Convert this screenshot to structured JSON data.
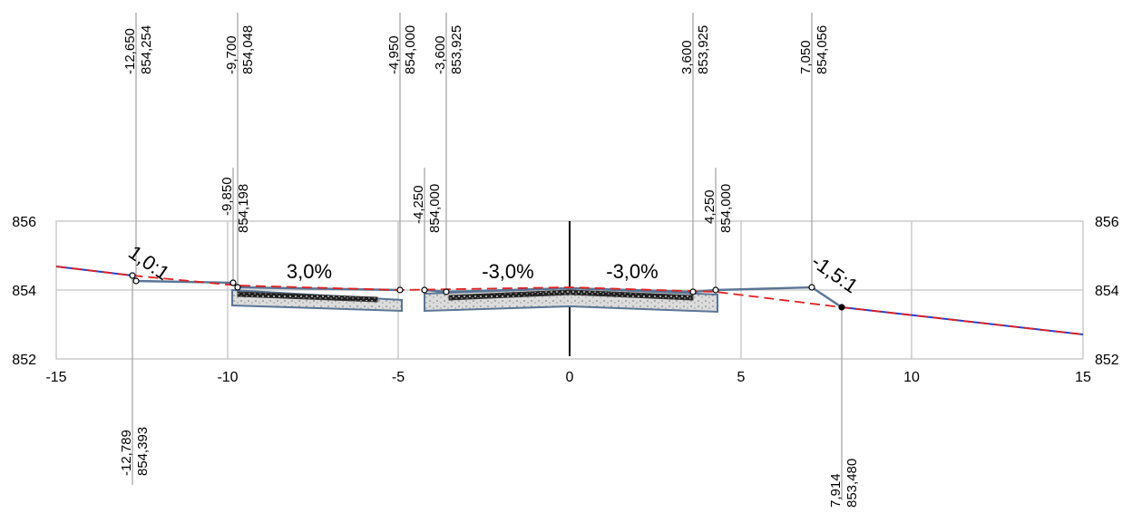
{
  "x_ticks": [
    "-15",
    "-10",
    "-5",
    "0",
    "5",
    "10",
    "15"
  ],
  "y_ticks_left": [
    "856",
    "854",
    "852"
  ],
  "y_ticks_right": [
    "856",
    "854",
    "852"
  ],
  "grade_labels": [
    "3,0%",
    "-3,0%",
    "-3,0%"
  ],
  "slope_labels": [
    "1,0:1",
    "-1,5:1"
  ],
  "top_labels": [
    {
      "offset": "-12,650",
      "elev": "854,254"
    },
    {
      "offset": "-9,700",
      "elev": "854,048"
    },
    {
      "offset": "-4,950",
      "elev": "854,000"
    },
    {
      "offset": "-3,600",
      "elev": "853,925"
    },
    {
      "offset": "3,600",
      "elev": "853,925"
    },
    {
      "offset": "7,050",
      "elev": "854,056"
    }
  ],
  "mid_labels": [
    {
      "offset": "-9,850",
      "elev": "854,198"
    },
    {
      "offset": "-4,250",
      "elev": "854,000"
    },
    {
      "offset": "4,250",
      "elev": "854,000"
    }
  ],
  "bottom_labels": [
    {
      "offset": "-12,789",
      "elev": "854,393"
    },
    {
      "offset": "7,914",
      "elev": "853,480"
    }
  ],
  "colors": {
    "grid": "#c4c4c4",
    "surface": "#5a7596",
    "existing_ground": "#e02020",
    "ground_line": "#1f3fd0",
    "pavement_dark": "#222222",
    "subbase": "#d8d8d8"
  }
}
